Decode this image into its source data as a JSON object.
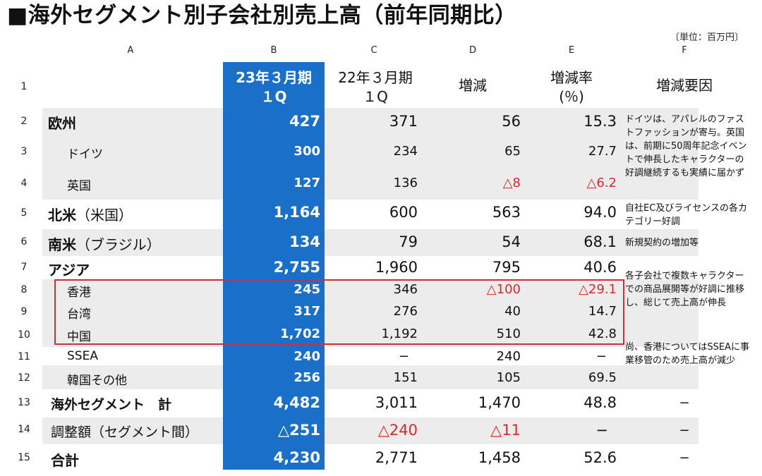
{
  "title": "■海外セグメント別子会社別売上高（前年同期比）",
  "unit": "〔単位：百万円〕",
  "column_letters": [
    "A",
    "B",
    "C",
    "D",
    "E",
    "F"
  ],
  "header": {
    "b_line1": "23年３月期",
    "b_line2": "１Q",
    "c_line1": "22年３月期",
    "c_line2": "１Q",
    "d": "増減",
    "e_line1": "増減率",
    "e_line2": "(％)",
    "f": "増減要因"
  },
  "row_numbers": [
    "1",
    "2",
    "3",
    "4",
    "5",
    "6",
    "7",
    "8",
    "9",
    "10",
    "11",
    "12",
    "13",
    "14",
    "15"
  ],
  "rows": [
    {
      "label": "欧州",
      "b": "427",
      "c": "371",
      "d": "56",
      "e": "15.3"
    },
    {
      "label": "ドイツ",
      "b": "300",
      "c": "234",
      "d": "65",
      "e": "27.7"
    },
    {
      "label": "英国",
      "b": "127",
      "c": "136",
      "d": "△8",
      "e": "△6.2"
    },
    {
      "label": "北米",
      "label_sub": "（米国）",
      "b": "1,164",
      "c": "600",
      "d": "563",
      "e": "94.0"
    },
    {
      "label": "南米",
      "label_sub": "（ブラジル）",
      "b": "134",
      "c": "79",
      "d": "54",
      "e": "68.1"
    },
    {
      "label": "アジア",
      "b": "2,755",
      "c": "1,960",
      "d": "795",
      "e": "40.6"
    },
    {
      "label": "香港",
      "b": "245",
      "c": "346",
      "d": "△100",
      "e": "△29.1"
    },
    {
      "label": "台湾",
      "b": "317",
      "c": "276",
      "d": "40",
      "e": "14.7"
    },
    {
      "label": "中国",
      "b": "1,702",
      "c": "1,192",
      "d": "510",
      "e": "42.8"
    },
    {
      "label": "SSEA",
      "b": "240",
      "c": "−",
      "d": "240",
      "e": "−"
    },
    {
      "label": "韓国その他",
      "b": "256",
      "c": "151",
      "d": "105",
      "e": "69.5"
    },
    {
      "label": "海外セグメント　計",
      "b": "4,482",
      "c": "3,011",
      "d": "1,470",
      "e": "48.8",
      "f": "−"
    },
    {
      "label": "調整額（セグメント間）",
      "b": "△251",
      "c": "△240",
      "d": "△11",
      "e": "−",
      "f": "−"
    },
    {
      "label": "合計",
      "b": "4,230",
      "c": "2,771",
      "d": "1,458",
      "e": "52.6",
      "f": "−"
    }
  ],
  "notes": {
    "europe": "ドイツは、アパレルのファストファッションが寄与。英国は、前期に50周年記念イベントで伸長したキャラクターの好調継続するも実績に届かず",
    "north_america": "自社EC及びライセンスの各カテゴリー好調",
    "south_america": "新規契約の増加等",
    "asia": "各子会社で複数キャラクターでの商品展開等が好調に推移し、総じて売上高が伸長",
    "asia_2": "尚、香港についてはSSEAに事業移管のため売上高が減少"
  },
  "colors": {
    "highlight_column": "#1a6fc9",
    "negative": "#d8262c",
    "band": "#ececec",
    "box": "#c8323a"
  }
}
